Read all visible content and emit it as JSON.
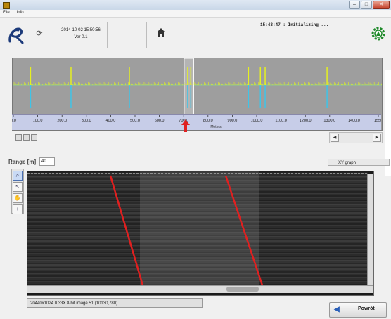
{
  "menu": [
    "File",
    "Info"
  ],
  "header": {
    "datetime": "2014-10-02 15:50:56",
    "version": "Ver 0.1",
    "status": "15:43:47 : Initializing ..."
  },
  "chart": {
    "axis_title": "Meters",
    "ticks": [
      "0,0",
      "100,0",
      "200,0",
      "300,0",
      "400,0",
      "500,0",
      "600,0",
      "700,0",
      "800,0",
      "900,0",
      "1000,0",
      "1100,0",
      "1200,0",
      "1300,0",
      "1400,0",
      "1550"
    ],
    "xmin": 0,
    "xmax": 1550,
    "selection_start_m": 720,
    "selection_end_m": 760,
    "marker_m": 740,
    "spikes_m": [
      75,
      245,
      490,
      735,
      748,
      990,
      1040,
      1060,
      1320
    ],
    "colors": {
      "positive": "#e5f020",
      "negative": "#3ec4e8",
      "marker": "#e02020"
    }
  },
  "range": {
    "label": "Range [m]",
    "value": "40"
  },
  "xy_graph": "XY graph",
  "tools": [
    "zoom",
    "pointer",
    "pan",
    "crosshair"
  ],
  "image": {
    "info": "20440x1024 0.33X 8-bit image 51   (10130,780)",
    "line_color": "#e02020"
  },
  "powrot_label": "Powrót"
}
